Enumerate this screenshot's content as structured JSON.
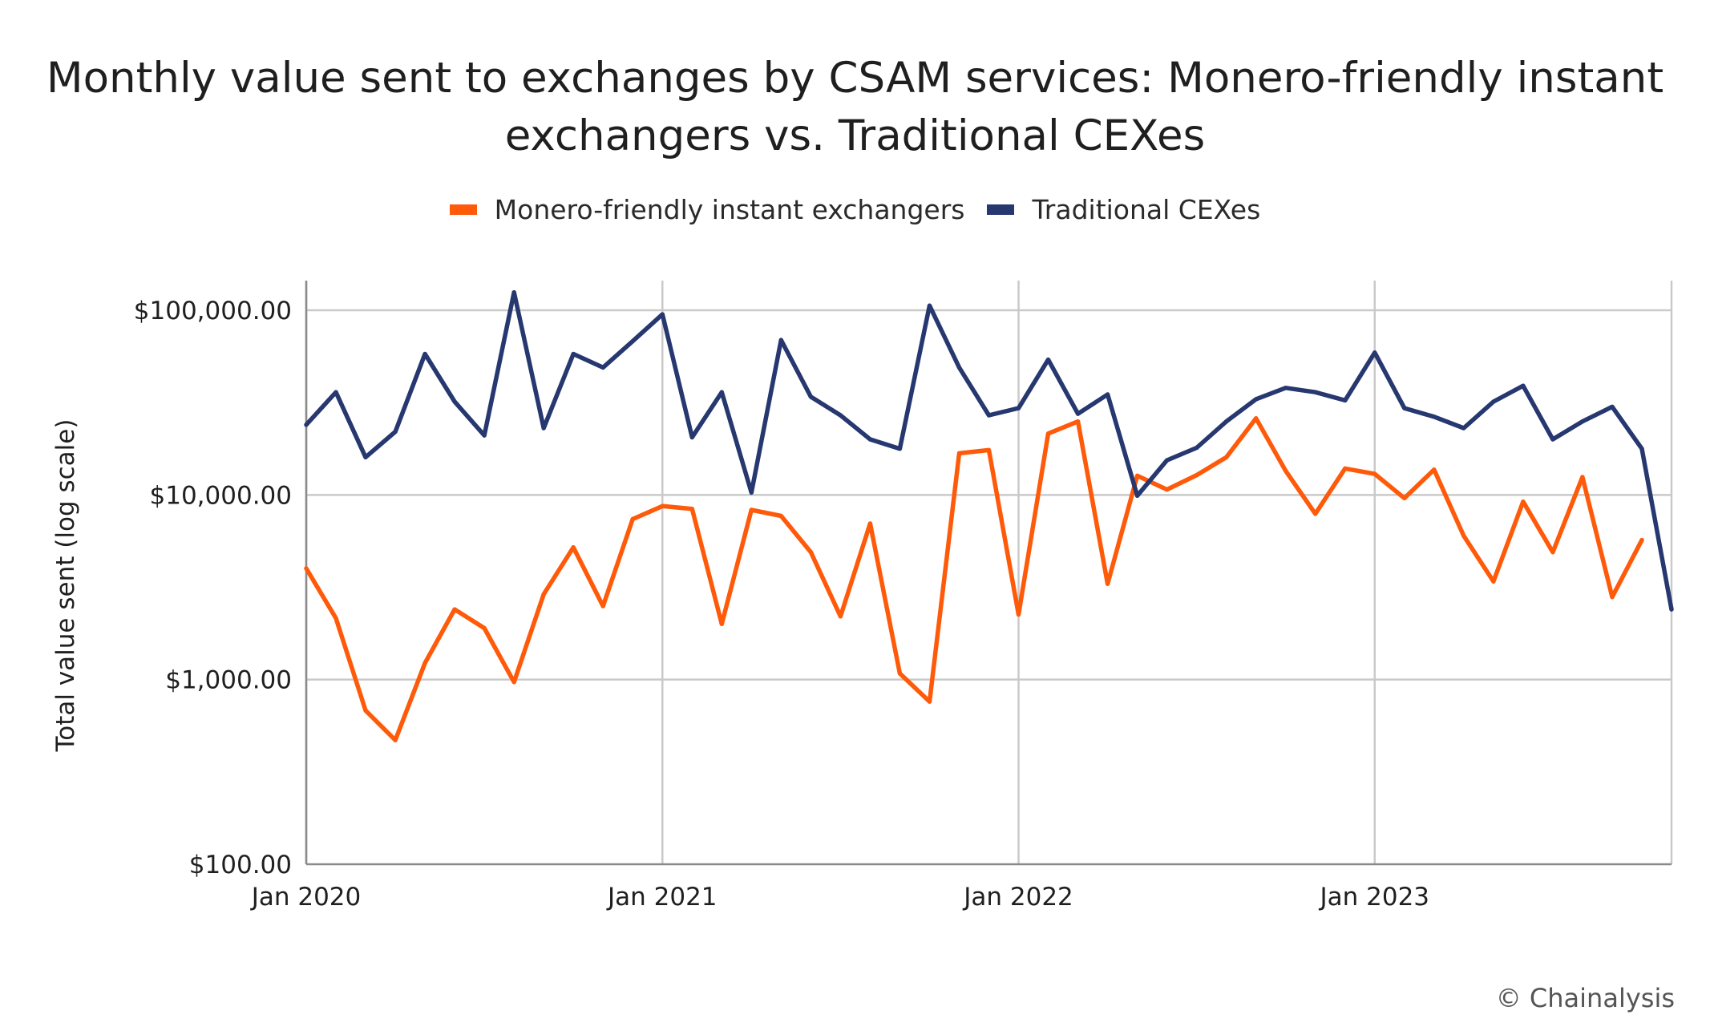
{
  "chart_data": {
    "type": "line",
    "title_lines": [
      "Monthly value sent to exchanges by CSAM services: Monero-friendly instant",
      "exchangers vs. Traditional CEXes"
    ],
    "ylabel": "Total value sent (log scale)",
    "xlabel": "",
    "y_scale": "log",
    "ylim": [
      100,
      150000
    ],
    "y_ticks": [
      {
        "value": 100,
        "label": "$100.00"
      },
      {
        "value": 1000,
        "label": "$1,000.00"
      },
      {
        "value": 10000,
        "label": "$10,000.00"
      },
      {
        "value": 100000,
        "label": "$100,000.00"
      }
    ],
    "x_ticks": [
      {
        "index": 0,
        "label": "Jan 2020"
      },
      {
        "index": 12,
        "label": "Jan 2021"
      },
      {
        "index": 24,
        "label": "Jan 2022"
      },
      {
        "index": 36,
        "label": "Jan 2023"
      }
    ],
    "x_range": [
      0,
      46
    ],
    "grid": true,
    "legend_position": "top-center",
    "series": [
      {
        "name": "Monero-friendly instant exchangers",
        "color": "#ff5a0a",
        "values": [
          4000,
          2150,
          680,
          470,
          1230,
          2400,
          1900,
          970,
          2900,
          5200,
          2500,
          7400,
          8700,
          8400,
          2000,
          8300,
          7700,
          4900,
          2200,
          7000,
          1080,
          760,
          16800,
          17500,
          2250,
          21500,
          25000,
          3300,
          12700,
          10700,
          12800,
          16000,
          26000,
          13500,
          7900,
          13900,
          13000,
          9600,
          13700,
          6000,
          3400,
          9200,
          4900,
          12500,
          2800,
          5700
        ]
      },
      {
        "name": "Traditional CEXes",
        "color": "#26386f",
        "values": [
          24000,
          36000,
          16000,
          22000,
          58000,
          32000,
          21000,
          125000,
          23000,
          58000,
          49000,
          68000,
          95000,
          20500,
          36000,
          10300,
          69000,
          34000,
          27000,
          20000,
          17800,
          106000,
          49000,
          27000,
          29500,
          54000,
          27500,
          35000,
          9900,
          15400,
          18000,
          25000,
          33000,
          38000,
          36000,
          32500,
          59000,
          29500,
          26500,
          23000,
          32000,
          39000,
          20000,
          25000,
          30000,
          17800,
          2400
        ]
      }
    ]
  },
  "credit": "© Chainalysis"
}
